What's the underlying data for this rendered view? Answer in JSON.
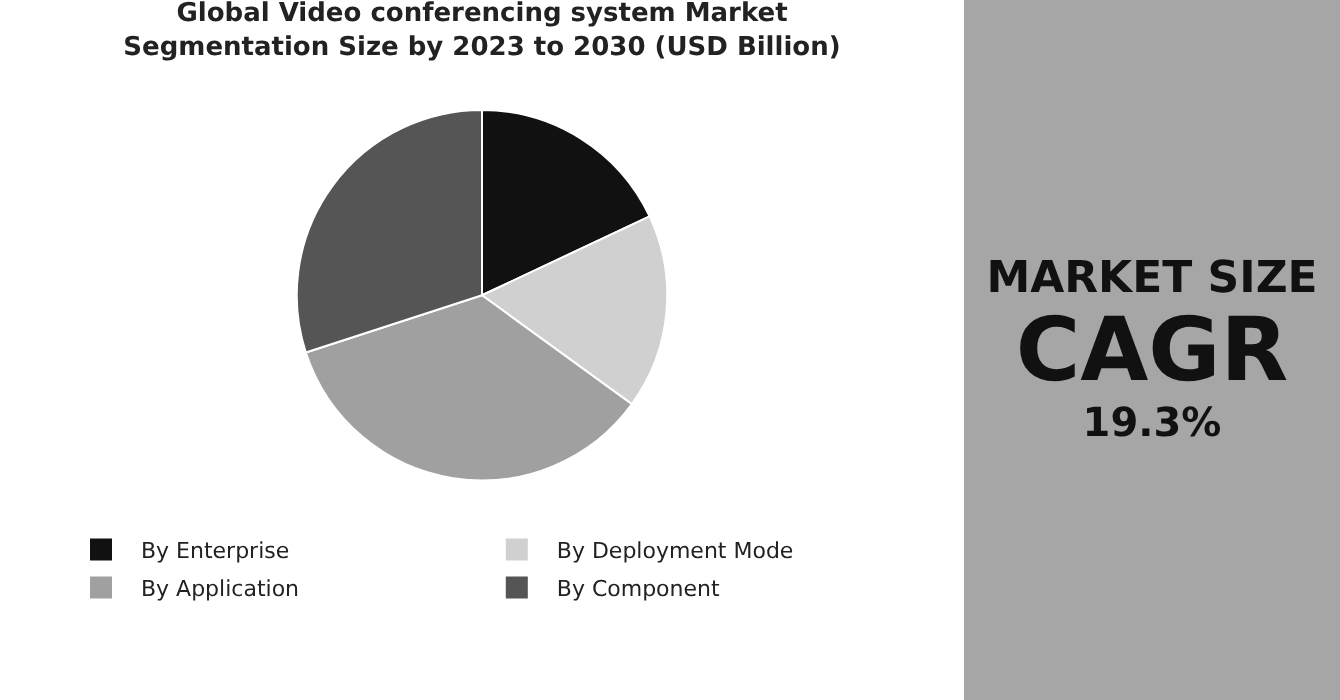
{
  "chart_data": {
    "type": "pie",
    "title": "Global Video conferencing system Market\nSegmentation Size by 2023 to 2030 (USD Billion)",
    "categories": [
      "By Enterprise",
      "By Deployment Mode",
      "By Application",
      "By Component"
    ],
    "values": [
      18,
      17,
      35,
      30
    ],
    "colors": [
      "#111111",
      "#d0d0d0",
      "#a0a0a0",
      "#555555"
    ],
    "legend": "bottom",
    "annotations": [
      "MARKET SIZE",
      "CAGR",
      "19.3%"
    ]
  }
}
